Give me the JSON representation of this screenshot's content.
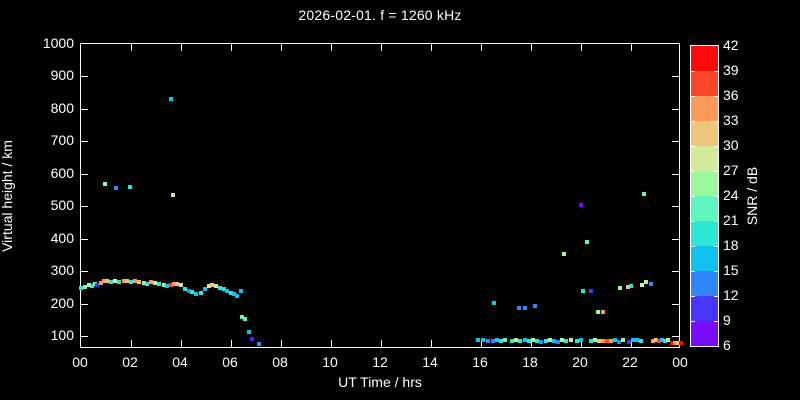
{
  "title": "2026-02-01. f = 1260 kHz",
  "x_axis": {
    "label": "UT Time / hrs",
    "tick_hours": [
      0,
      2,
      4,
      6,
      8,
      10,
      12,
      14,
      16,
      18,
      20,
      22,
      24
    ],
    "tick_labels": [
      "00",
      "02",
      "04",
      "06",
      "08",
      "10",
      "12",
      "14",
      "16",
      "18",
      "20",
      "22",
      "00"
    ]
  },
  "y_axis": {
    "label": "Virtual height / km",
    "tick_values": [
      100,
      200,
      300,
      400,
      500,
      600,
      700,
      800,
      900,
      1000
    ]
  },
  "colorbar": {
    "label": "SNR / dB",
    "tick_values": [
      6,
      9,
      12,
      15,
      18,
      21,
      24,
      27,
      30,
      33,
      36,
      39,
      42
    ],
    "segment_colors_bottom_to_top": [
      "#7a0afa",
      "#4736fa",
      "#2e86fa",
      "#12c2ee",
      "#2ee6d6",
      "#5ff5be",
      "#9bf89b",
      "#d2ea9b",
      "#eec77a",
      "#fa9a58",
      "#fa4628",
      "#fa0a0a"
    ]
  },
  "colors": {
    "background": "#000000",
    "foreground": "#ffffff"
  },
  "chart_data": {
    "type": "scatter",
    "title": "2026-02-01. f = 1260 kHz",
    "xlabel": "UT Time / hrs",
    "ylabel": "Virtual height / km",
    "xlim": [
      0,
      24
    ],
    "ylim": [
      60,
      1000
    ],
    "grid": false,
    "colorbar": {
      "label": "SNR / dB",
      "min": 6,
      "max": 42,
      "step": 3,
      "position": "right"
    },
    "point_fields": [
      "ut_hours",
      "virtual_height_km",
      "snr_db"
    ],
    "points": [
      [
        0.0,
        248,
        19
      ],
      [
        0.15,
        251,
        25
      ],
      [
        0.3,
        257,
        28
      ],
      [
        0.45,
        254,
        19
      ],
      [
        0.55,
        260,
        25
      ],
      [
        0.65,
        257,
        10
      ],
      [
        0.78,
        263,
        34
      ],
      [
        0.9,
        270,
        34
      ],
      [
        1.05,
        270,
        31
      ],
      [
        1.2,
        266,
        19
      ],
      [
        1.35,
        270,
        28
      ],
      [
        1.5,
        266,
        20
      ],
      [
        1.7,
        270,
        34
      ],
      [
        1.85,
        270,
        31
      ],
      [
        2.0,
        266,
        19
      ],
      [
        2.15,
        270,
        34
      ],
      [
        2.3,
        266,
        31
      ],
      [
        2.5,
        263,
        25
      ],
      [
        2.65,
        260,
        19
      ],
      [
        2.8,
        266,
        34
      ],
      [
        2.95,
        263,
        28
      ],
      [
        3.1,
        260,
        19
      ],
      [
        3.3,
        257,
        25
      ],
      [
        3.45,
        254,
        16
      ],
      [
        3.6,
        257,
        37
      ],
      [
        3.72,
        260,
        34
      ],
      [
        3.85,
        260,
        30
      ],
      [
        4.0,
        257,
        27
      ],
      [
        4.15,
        244,
        19
      ],
      [
        4.3,
        239,
        13
      ],
      [
        4.45,
        236,
        20
      ],
      [
        4.6,
        229,
        16
      ],
      [
        4.8,
        233,
        20
      ],
      [
        4.95,
        244,
        16
      ],
      [
        5.1,
        254,
        27
      ],
      [
        5.25,
        257,
        30
      ],
      [
        5.4,
        254,
        27
      ],
      [
        5.55,
        248,
        20
      ],
      [
        5.7,
        244,
        19
      ],
      [
        5.85,
        239,
        16
      ],
      [
        6.0,
        233,
        20
      ],
      [
        6.12,
        229,
        16
      ],
      [
        6.25,
        223,
        16
      ],
      [
        6.4,
        240,
        16
      ],
      [
        6.45,
        159,
        22
      ],
      [
        6.55,
        152,
        22
      ],
      [
        6.7,
        112,
        16
      ],
      [
        6.85,
        91,
        7
      ],
      [
        7.1,
        76,
        13
      ],
      [
        0.96,
        570,
        25
      ],
      [
        1.4,
        556,
        13
      ],
      [
        1.96,
        559,
        19
      ],
      [
        3.6,
        830,
        16
      ],
      [
        3.68,
        535,
        27
      ],
      [
        15.88,
        88,
        16
      ],
      [
        16.08,
        88,
        16
      ],
      [
        16.28,
        86,
        13
      ],
      [
        16.48,
        86,
        13
      ],
      [
        16.64,
        88,
        16
      ],
      [
        16.8,
        86,
        19
      ],
      [
        16.96,
        88,
        22
      ],
      [
        17.24,
        86,
        19
      ],
      [
        17.4,
        88,
        25
      ],
      [
        17.56,
        86,
        19
      ],
      [
        17.76,
        88,
        16
      ],
      [
        17.92,
        86,
        19
      ],
      [
        18.08,
        88,
        25
      ],
      [
        18.24,
        86,
        19
      ],
      [
        18.4,
        83,
        13
      ],
      [
        18.6,
        86,
        19
      ],
      [
        18.76,
        88,
        25
      ],
      [
        18.92,
        86,
        16
      ],
      [
        19.08,
        83,
        13
      ],
      [
        19.24,
        88,
        25
      ],
      [
        19.4,
        86,
        19
      ],
      [
        19.6,
        88,
        27
      ],
      [
        19.84,
        86,
        19
      ],
      [
        20.0,
        88,
        16
      ],
      [
        20.4,
        86,
        19
      ],
      [
        20.56,
        88,
        25
      ],
      [
        20.72,
        86,
        30
      ],
      [
        20.88,
        86,
        34
      ],
      [
        21.04,
        86,
        37
      ],
      [
        21.2,
        86,
        34
      ],
      [
        21.36,
        88,
        16
      ],
      [
        21.52,
        83,
        13
      ],
      [
        21.68,
        88,
        25
      ],
      [
        21.92,
        83,
        10
      ],
      [
        22.08,
        88,
        16
      ],
      [
        22.24,
        88,
        16
      ],
      [
        22.4,
        86,
        19
      ],
      [
        22.88,
        86,
        34
      ],
      [
        23.0,
        88,
        30
      ],
      [
        23.12,
        86,
        37
      ],
      [
        23.24,
        88,
        16
      ],
      [
        23.36,
        86,
        19
      ],
      [
        23.48,
        88,
        25
      ],
      [
        23.64,
        80,
        40
      ],
      [
        23.76,
        78,
        34
      ],
      [
        23.88,
        78,
        30
      ],
      [
        24.0,
        80,
        40
      ],
      [
        16.52,
        202,
        16
      ],
      [
        17.5,
        186,
        13
      ],
      [
        17.76,
        186,
        13
      ],
      [
        18.16,
        192,
        13
      ],
      [
        19.32,
        352,
        25
      ],
      [
        20.0,
        505,
        8
      ],
      [
        20.08,
        239,
        19
      ],
      [
        20.24,
        390,
        22
      ],
      [
        20.4,
        239,
        10
      ],
      [
        20.68,
        174,
        25
      ],
      [
        20.88,
        174,
        34
      ],
      [
        21.56,
        248,
        25
      ],
      [
        21.88,
        251,
        31
      ],
      [
        22.0,
        254,
        19
      ],
      [
        22.44,
        257,
        28
      ],
      [
        22.6,
        266,
        25
      ],
      [
        22.8,
        260,
        13
      ],
      [
        22.52,
        537,
        22
      ]
    ]
  }
}
